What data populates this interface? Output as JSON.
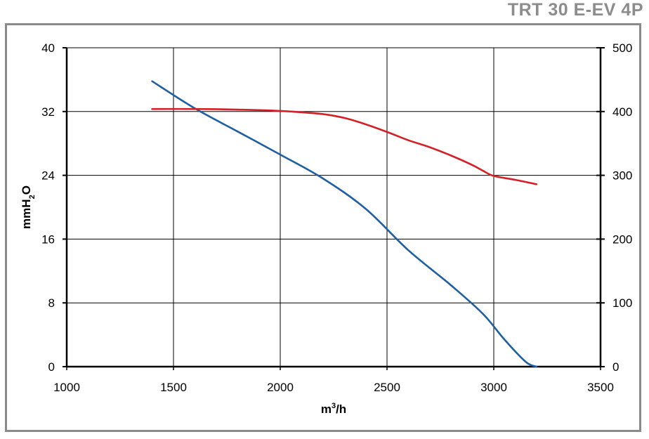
{
  "title": "TRT 30 E-EV 4P",
  "chart_data": {
    "type": "line",
    "xlabel_base": "m",
    "xlabel_sup": "3",
    "xlabel_tail": "/h",
    "ylabel_base": "mmH",
    "ylabel_sub": "2",
    "ylabel_tail": "O",
    "xlim": [
      1000,
      3500
    ],
    "ylim": [
      0,
      40
    ],
    "y2lim": [
      0,
      500
    ],
    "x_ticks": [
      "1000",
      "1500",
      "2000",
      "2500",
      "3000",
      "3500"
    ],
    "y_ticks": [
      "0",
      "8",
      "16",
      "24",
      "32",
      "40"
    ],
    "y2_ticks": [
      "0",
      "100",
      "200",
      "300",
      "400",
      "500"
    ],
    "grid": true,
    "series": [
      {
        "color": "#1f5fa0",
        "axis": "left",
        "x": [
          1400,
          1600,
          1800,
          2000,
          2200,
          2400,
          2600,
          2800,
          2950,
          3050,
          3150,
          3200
        ],
        "y": [
          35.8,
          32.4,
          29.5,
          26.6,
          23.6,
          19.8,
          14.6,
          10.2,
          6.6,
          3.4,
          0.6,
          0
        ]
      },
      {
        "color": "#d42027",
        "axis": "right",
        "x": [
          1400,
          1600,
          1800,
          2000,
          2200,
          2300,
          2400,
          2500,
          2600,
          2700,
          2800,
          2900,
          2950,
          3000,
          3100,
          3200
        ],
        "y": [
          404,
          404,
          403,
          401,
          396,
          390,
          380,
          368,
          355,
          344,
          331,
          316,
          307,
          299,
          293,
          286
        ]
      }
    ]
  }
}
